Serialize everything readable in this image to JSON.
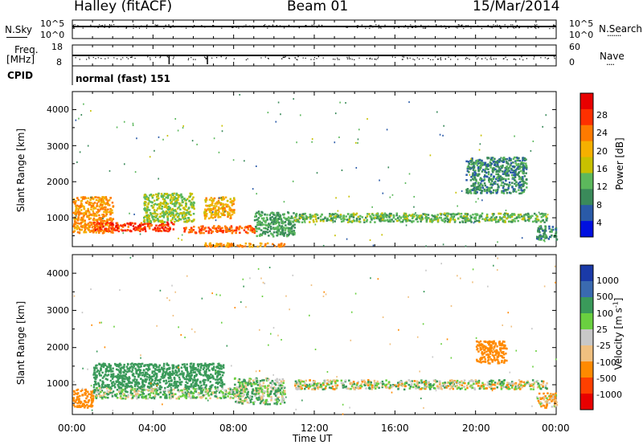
{
  "header": {
    "station": "Halley (fitACF)",
    "beam": "Beam 01",
    "date": "15/Mar/2014"
  },
  "sky_panel": {
    "left_label": "N.Sky",
    "left_ticks": [
      "10^5",
      "10^0"
    ],
    "right_ticks": [
      "10^5",
      "10^0"
    ],
    "right_label": "N.Search",
    "right_legend": "·······"
  },
  "freq_panel": {
    "left_label_line1": "Freq.",
    "left_label_line2": "[MHz]",
    "left_ticks": [
      "18",
      "8"
    ],
    "right_ticks": [
      "60",
      "0"
    ],
    "right_label": "Nave",
    "right_legend": "····"
  },
  "cpid": {
    "label": "CPID",
    "value": "normal (fast) 151"
  },
  "power_panel": {
    "ylabel": "Slant Range [km]",
    "yticks": [
      "4000",
      "3000",
      "2000",
      "1000"
    ],
    "colorbar_label": "Power [dB]",
    "colorbar_ticks": [
      "28",
      "24",
      "20",
      "16",
      "12",
      "8",
      "4"
    ],
    "colorbar_colors": [
      "#e80000",
      "#ff3000",
      "#ff7a00",
      "#f5b000",
      "#c8c000",
      "#5cb85c",
      "#3a8a5a",
      "#2a5aa8",
      "#0010e0"
    ]
  },
  "velocity_panel": {
    "ylabel": "Slant Range [km]",
    "yticks": [
      "4000",
      "3000",
      "2000",
      "1000"
    ],
    "colorbar_label": "Velocity",
    "colorbar_unit": "[m s",
    "colorbar_unit_sup": "-1",
    "colorbar_unit_end": "]",
    "colorbar_ticks": [
      "1000",
      "500",
      "100",
      "25",
      "-25",
      "-100",
      "-500",
      "-1000"
    ],
    "colorbar_colors": [
      "#1a3aa8",
      "#3a6ab0",
      "#3a9a5a",
      "#6ad040",
      "#c8c8c8",
      "#f0c080",
      "#ff8a00",
      "#ff4000",
      "#e80000"
    ]
  },
  "xaxis": {
    "label": "Time UT",
    "ticks": [
      "00:00",
      "04:00",
      "08:00",
      "12:00",
      "16:00",
      "20:00",
      "00:00"
    ]
  },
  "chart_data": [
    {
      "type": "heatmap",
      "title": "Power",
      "xlabel": "Time UT",
      "ylabel": "Slant Range [km]",
      "xlim": [
        0,
        24
      ],
      "ylim": [
        200,
        4500
      ],
      "zlabel": "Power [dB]",
      "zlim": [
        0,
        32
      ],
      "regions": [
        {
          "t_start": 0.0,
          "t_end": 2.0,
          "range_lo": 600,
          "range_hi": 1600,
          "power": 22
        },
        {
          "t_start": 1.0,
          "t_end": 5.0,
          "range_lo": 650,
          "range_hi": 900,
          "power": 28
        },
        {
          "t_start": 3.5,
          "t_end": 6.0,
          "range_lo": 900,
          "range_hi": 1700,
          "power": 14
        },
        {
          "t_start": 5.5,
          "t_end": 9.0,
          "range_lo": 600,
          "range_hi": 800,
          "power": 26
        },
        {
          "t_start": 6.5,
          "t_end": 8.0,
          "range_lo": 1000,
          "range_hi": 1600,
          "power": 20
        },
        {
          "t_start": 6.5,
          "t_end": 10.5,
          "range_lo": 220,
          "range_hi": 320,
          "power": 22
        },
        {
          "t_start": 9.0,
          "t_end": 11.0,
          "range_lo": 500,
          "range_hi": 1200,
          "power": 10
        },
        {
          "t_start": 11.0,
          "t_end": 23.5,
          "range_lo": 900,
          "range_hi": 1150,
          "power": 12
        },
        {
          "t_start": 19.5,
          "t_end": 22.5,
          "range_lo": 1700,
          "range_hi": 2700,
          "power": 8
        },
        {
          "t_start": 23.0,
          "t_end": 24.0,
          "range_lo": 400,
          "range_hi": 800,
          "power": 8
        }
      ]
    },
    {
      "type": "heatmap",
      "title": "Velocity",
      "xlabel": "Time UT",
      "ylabel": "Slant Range [km]",
      "xlim": [
        0,
        24
      ],
      "ylim": [
        200,
        4500
      ],
      "zlabel": "Velocity [m s-1]",
      "zlim": [
        -1000,
        1000
      ],
      "regions": [
        {
          "t_start": 0.0,
          "t_end": 1.0,
          "range_lo": 400,
          "range_hi": 900,
          "velocity": -300
        },
        {
          "t_start": 1.0,
          "t_end": 8.5,
          "range_lo": 650,
          "range_hi": 950,
          "velocity": 80
        },
        {
          "t_start": 1.0,
          "t_end": 7.5,
          "range_lo": 950,
          "range_hi": 1600,
          "velocity": 300
        },
        {
          "t_start": 8.0,
          "t_end": 10.5,
          "range_lo": 500,
          "range_hi": 1200,
          "velocity": 60
        },
        {
          "t_start": 11.0,
          "t_end": 23.5,
          "range_lo": 900,
          "range_hi": 1150,
          "velocity": 0
        },
        {
          "t_start": 20.0,
          "t_end": 21.5,
          "range_lo": 1600,
          "range_hi": 2200,
          "velocity": -300
        },
        {
          "t_start": 23.0,
          "t_end": 24.0,
          "range_lo": 400,
          "range_hi": 800,
          "velocity": -80
        }
      ]
    },
    {
      "type": "line",
      "title": "N.Sky",
      "ylabel": "N.Sky",
      "scale": "log",
      "ylim": [
        1,
        100000
      ],
      "description_values": {
        "typical": 50000
      }
    },
    {
      "type": "line",
      "title": "Freq.",
      "ylabel": "[MHz]",
      "ylim": [
        8,
        18
      ],
      "series": [
        {
          "name": "Freq.",
          "values": [
            12,
            12,
            12,
            12,
            12,
            12
          ]
        }
      ]
    }
  ]
}
